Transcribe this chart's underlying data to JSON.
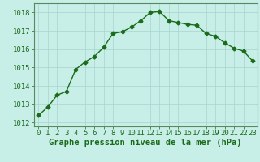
{
  "x": [
    0,
    1,
    2,
    3,
    4,
    5,
    6,
    7,
    8,
    9,
    10,
    11,
    12,
    13,
    14,
    15,
    16,
    17,
    18,
    19,
    20,
    21,
    22,
    23
  ],
  "y": [
    1012.4,
    1012.85,
    1013.5,
    1013.7,
    1014.9,
    1015.3,
    1015.6,
    1016.1,
    1016.85,
    1016.95,
    1017.2,
    1017.55,
    1018.0,
    1018.05,
    1017.55,
    1017.45,
    1017.35,
    1017.3,
    1016.85,
    1016.7,
    1016.35,
    1016.05,
    1015.9,
    1015.35
  ],
  "line_color": "#1a6b1a",
  "marker": "D",
  "marker_size": 2.5,
  "linewidth": 1.0,
  "bg_color": "#c8eee8",
  "grid_color": "#a8d4ce",
  "xlabel": "Graphe pression niveau de la mer (hPa)",
  "xlabel_fontsize": 7.5,
  "xlabel_color": "#1a6b1a",
  "xlabel_fontweight": "bold",
  "tick_color": "#1a6b1a",
  "tick_fontsize": 6.5,
  "ylim": [
    1011.8,
    1018.5
  ],
  "yticks": [
    1012,
    1013,
    1014,
    1015,
    1016,
    1017,
    1018
  ],
  "xlim": [
    -0.5,
    23.5
  ],
  "xticks": [
    0,
    1,
    2,
    3,
    4,
    5,
    6,
    7,
    8,
    9,
    10,
    11,
    12,
    13,
    14,
    15,
    16,
    17,
    18,
    19,
    20,
    21,
    22,
    23
  ]
}
